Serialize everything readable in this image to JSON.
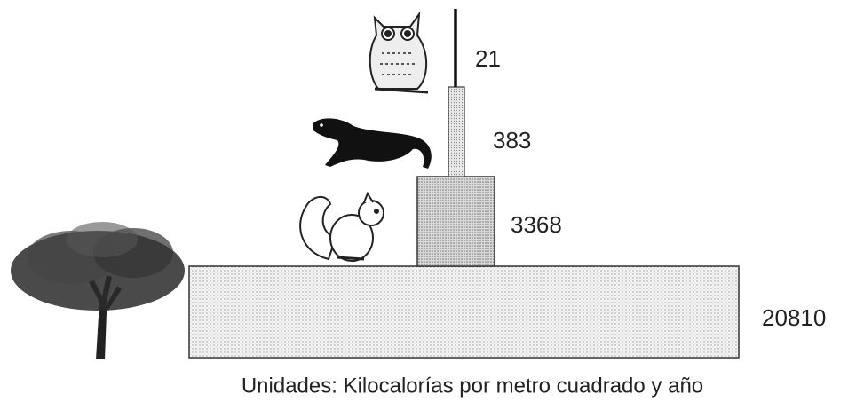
{
  "levels": [
    {
      "value": 20810
    },
    {
      "value": 3368
    },
    {
      "value": 383
    },
    {
      "value": 21
    }
  ],
  "caption": "Unidades: Kilocalorías por metro cuadrado y año"
}
